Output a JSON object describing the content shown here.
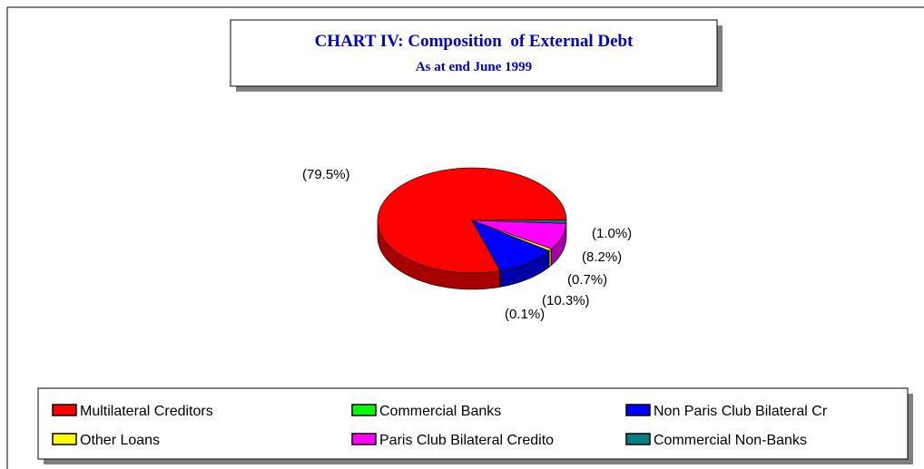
{
  "chart_data": {
    "type": "pie",
    "title": "CHART IV: Composition  of External Debt",
    "subtitle": "As at end June 1999",
    "categories": [
      "Multilateral Creditors",
      "Commercial Banks",
      "Non Paris Club Bilateral Cr",
      "Other Loans",
      "Paris Club Bilateral Credito",
      "Commercial Non-Banks"
    ],
    "values": [
      79.5,
      0.1,
      10.3,
      0.7,
      8.2,
      1.0
    ],
    "value_labels": [
      "(79.5%)",
      "(0.1%)",
      "(10.3%)",
      "(0.7%)",
      "(8.2%)",
      "(1.0%)"
    ],
    "colors": [
      "#ff0000",
      "#00ff00",
      "#0000ff",
      "#ffff00",
      "#ff00ff",
      "#008080"
    ],
    "legend": "bottom"
  }
}
